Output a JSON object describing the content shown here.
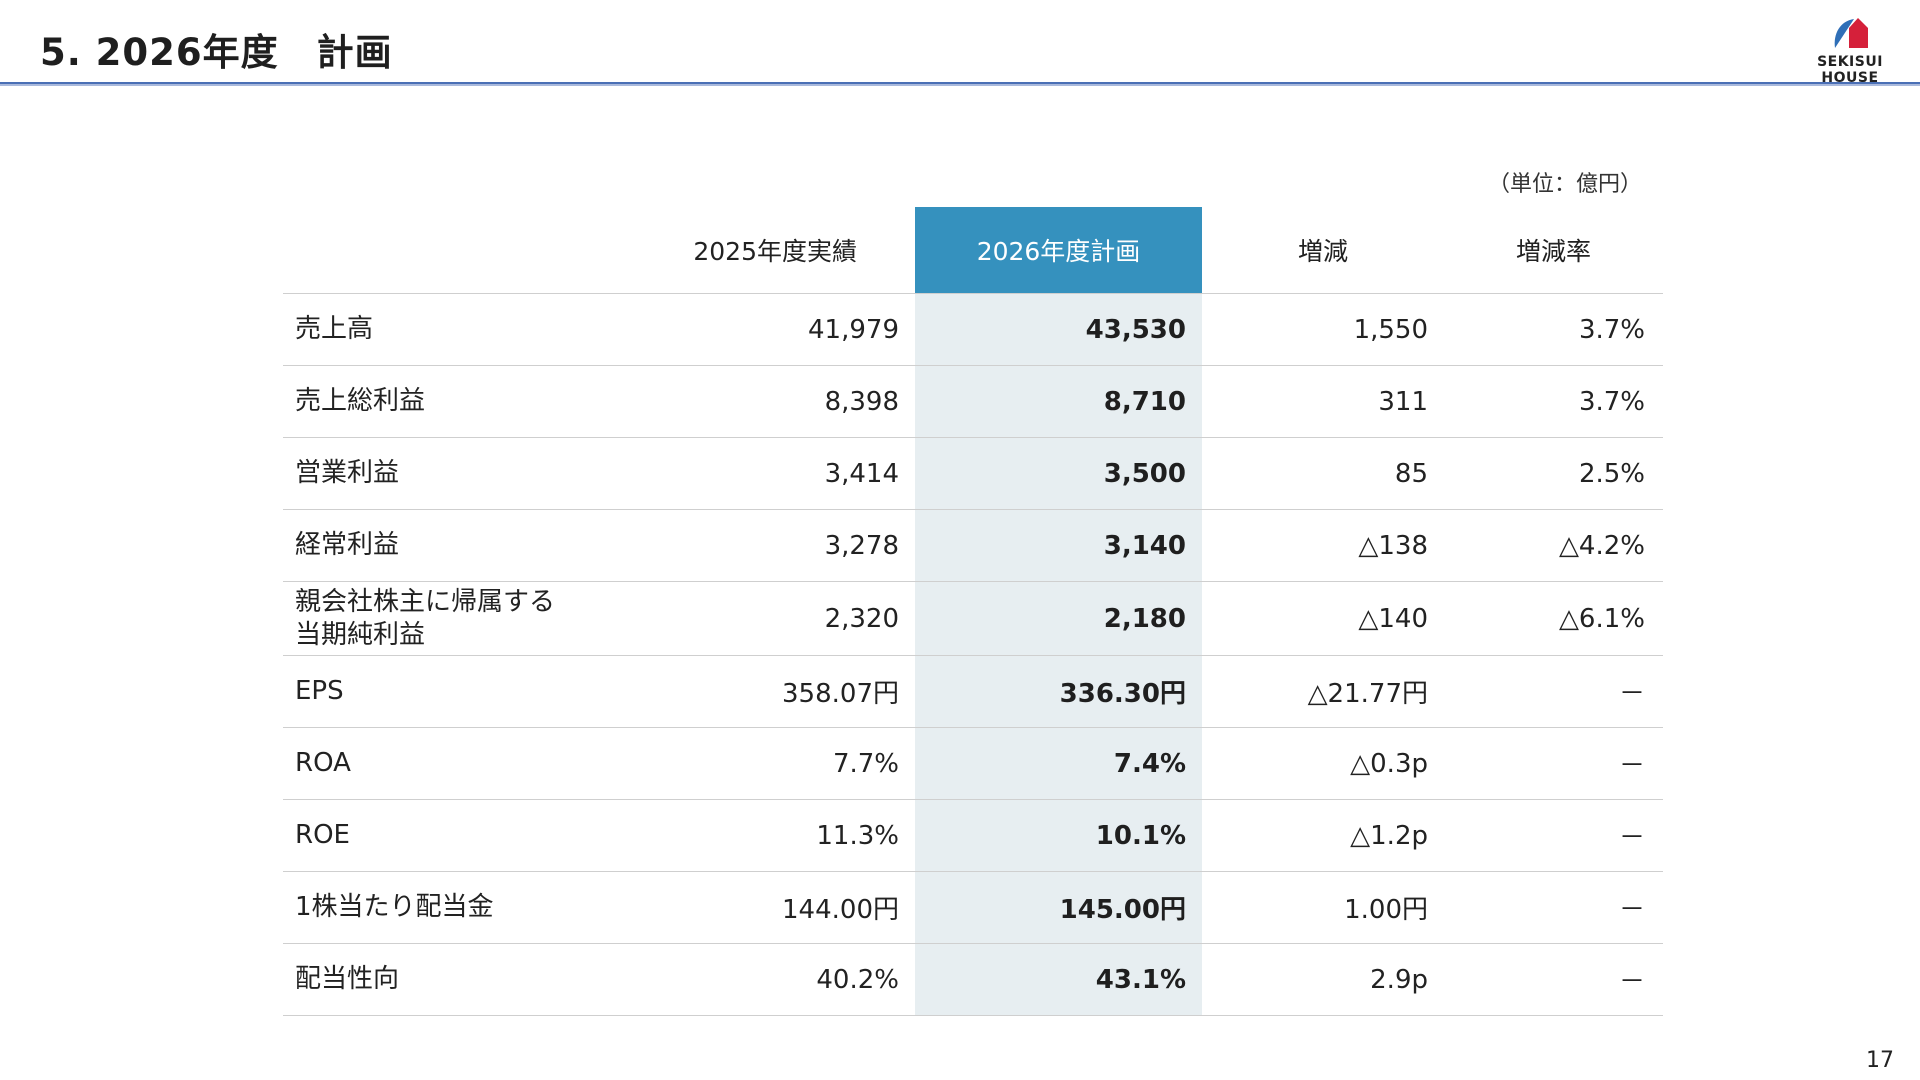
{
  "header": {
    "title": "5. 2026年度　計画",
    "logo_text": "SEKISUI HOUSE"
  },
  "colors": {
    "accent_header": "#3591be",
    "plan_column_bg": "#e7eef1",
    "title_rule": "#4a6fb5",
    "logo_blue": "#2f6fb7",
    "logo_red": "#d5203a"
  },
  "unit_note": "（単位：億円）",
  "table": {
    "columns": [
      "",
      "2025年度実績",
      "2026年度計画",
      "増減",
      "増減率"
    ],
    "rows": [
      {
        "label": "売上高",
        "prev": "41,979",
        "plan": "43,530",
        "diff": "1,550",
        "rate": "3.7%"
      },
      {
        "label": "売上総利益",
        "prev": "8,398",
        "plan": "8,710",
        "diff": "311",
        "rate": "3.7%"
      },
      {
        "label": "営業利益",
        "prev": "3,414",
        "plan": "3,500",
        "diff": "85",
        "rate": "2.5%"
      },
      {
        "label": "経常利益",
        "prev": "3,278",
        "plan": "3,140",
        "diff": "△138",
        "rate": "△4.2%"
      },
      {
        "label": "親会社株主に帰属する",
        "label2": "当期純利益",
        "prev": "2,320",
        "plan": "2,180",
        "diff": "△140",
        "rate": "△6.1%"
      },
      {
        "label": "EPS",
        "prev": "358.07円",
        "plan": "336.30円",
        "diff": "△21.77円",
        "rate": "－"
      },
      {
        "label": "ROA",
        "prev": "7.7%",
        "plan": "7.4%",
        "diff": "△0.3p",
        "rate": "－"
      },
      {
        "label": "ROE",
        "prev": "11.3%",
        "plan": "10.1%",
        "diff": "△1.2p",
        "rate": "－"
      },
      {
        "label": "1株当たり配当金",
        "prev": "144.00円",
        "plan": "145.00円",
        "diff": "1.00円",
        "rate": "－"
      },
      {
        "label": "配当性向",
        "prev": "40.2%",
        "plan": "43.1%",
        "diff": "2.9p",
        "rate": "－"
      }
    ]
  },
  "page_number": "17"
}
